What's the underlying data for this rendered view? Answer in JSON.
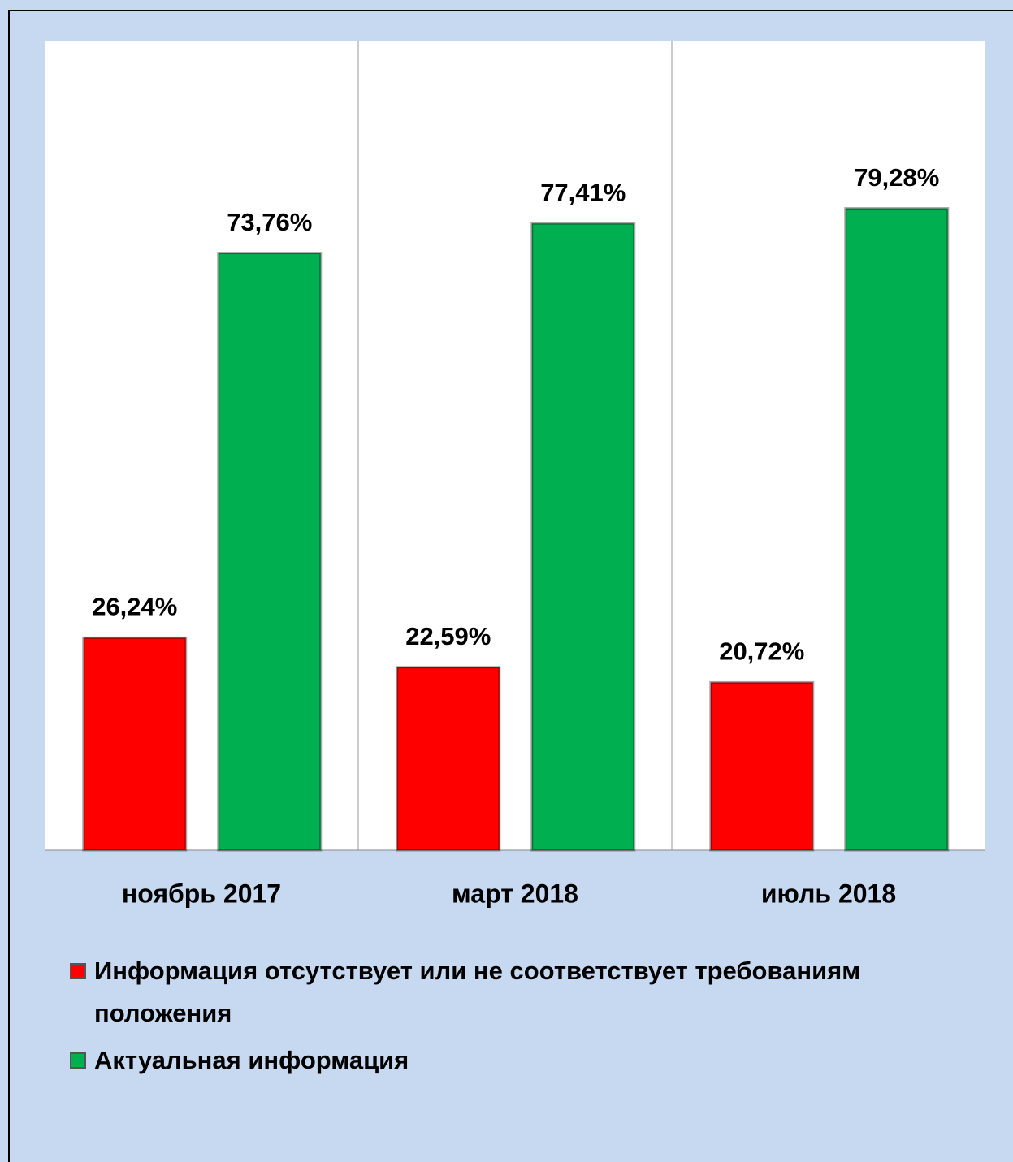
{
  "chart_data": {
    "type": "bar",
    "categories": [
      "ноябрь 2017",
      "март 2018",
      "июль 2018"
    ],
    "series": [
      {
        "name": "Информация отсутствует или не соответствует требованиям положения",
        "color": "#ff0000",
        "values": [
          26.24,
          22.59,
          20.72
        ],
        "value_labels": [
          "26,24%",
          "22,59%",
          "20,72%"
        ]
      },
      {
        "name": "Актуальная информация",
        "color": "#00b050",
        "values": [
          73.76,
          77.41,
          79.28
        ],
        "value_labels": [
          "73,76%",
          "77,41%",
          "79,28%"
        ]
      }
    ],
    "ylim": [
      0,
      100
    ]
  }
}
